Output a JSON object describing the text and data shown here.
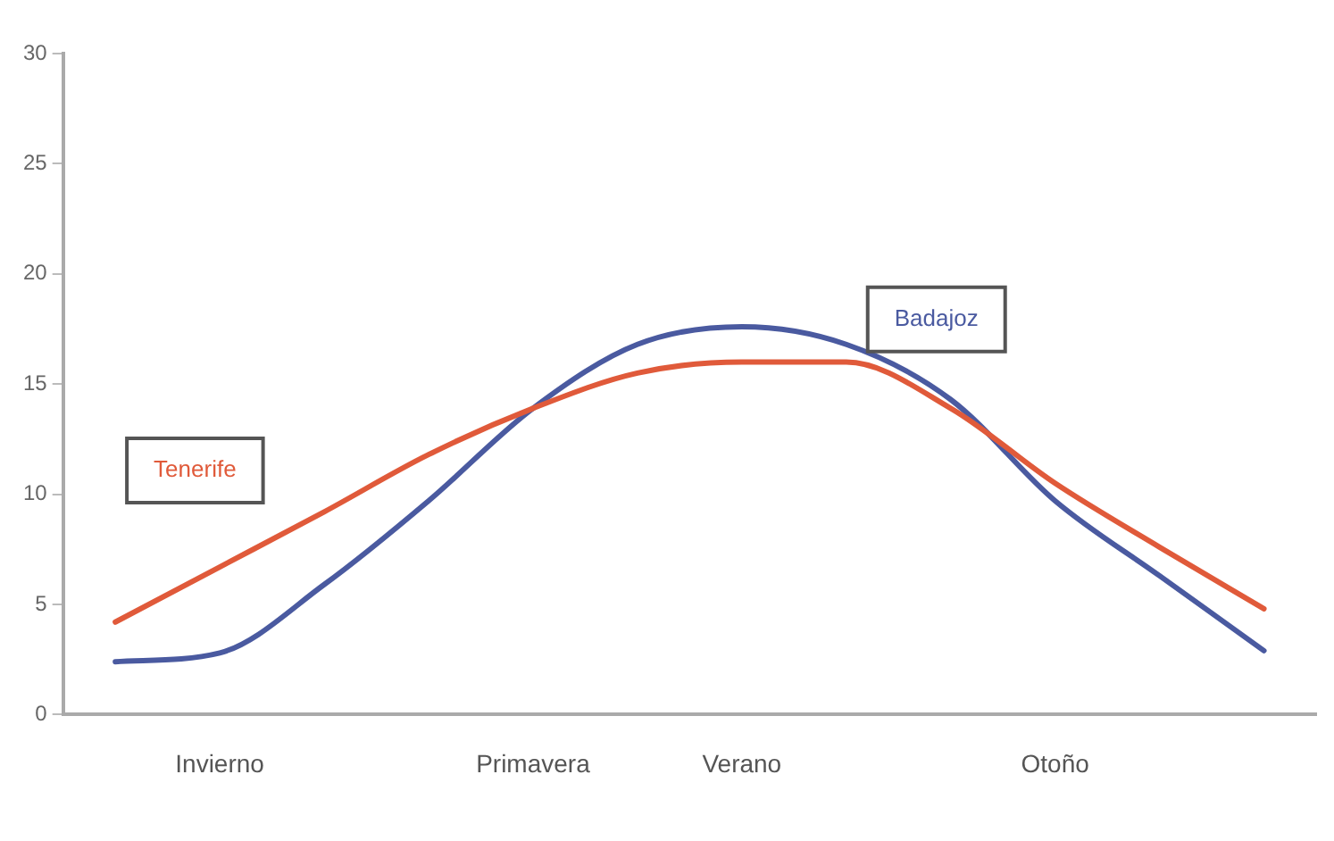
{
  "chart_data": {
    "type": "line",
    "categories": [
      null,
      "Invierno",
      null,
      null,
      "Primavera",
      null,
      "Verano",
      null,
      null,
      "Otoño",
      null,
      null
    ],
    "ylim": [
      0,
      30
    ],
    "yticks": [
      0,
      5,
      10,
      15,
      20,
      25,
      30
    ],
    "series": [
      {
        "name": "Tenerife",
        "color": "#e05a3a",
        "values": [
          4.2,
          6.7,
          9.2,
          11.8,
          13.9,
          15.5,
          16.0,
          16.0,
          13.9,
          10.5,
          7.6,
          4.8
        ]
      },
      {
        "name": "Badajoz",
        "color": "#4a5aa0",
        "values": [
          2.4,
          2.8,
          5.9,
          9.7,
          13.9,
          16.8,
          17.6,
          16.8,
          14.3,
          9.7,
          6.3,
          2.9
        ]
      }
    ],
    "grid": false,
    "legend": false,
    "marker": "none",
    "line_style": "solid"
  }
}
